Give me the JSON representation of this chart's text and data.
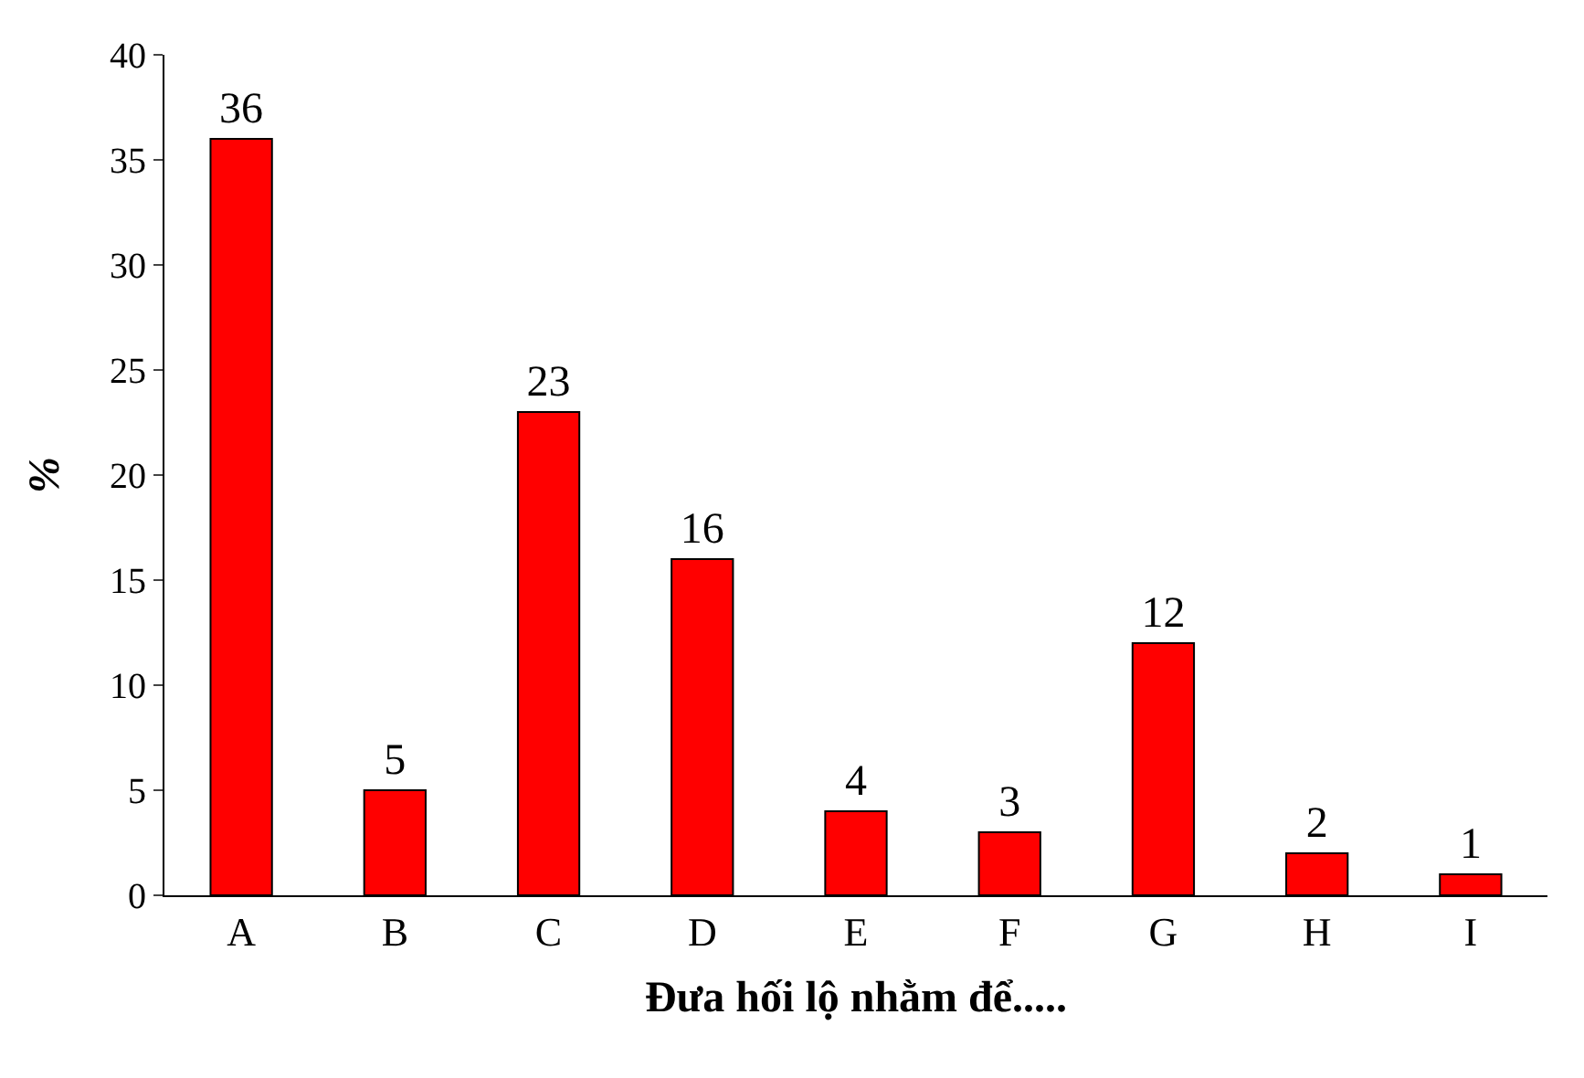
{
  "chart_data": {
    "type": "bar",
    "xlabel": "Đưa hối lộ nhằm để.....",
    "ylabel": "%",
    "categories": [
      "A",
      "B",
      "C",
      "D",
      "E",
      "F",
      "G",
      "H",
      "I"
    ],
    "values": [
      36,
      5,
      23,
      16,
      4,
      3,
      12,
      2,
      1
    ],
    "color": "#ff0000",
    "ylim": [
      0,
      40
    ],
    "yticks": [
      0,
      5,
      10,
      15,
      20,
      25,
      30,
      35,
      40
    ],
    "data_labels": true,
    "legend": false
  }
}
